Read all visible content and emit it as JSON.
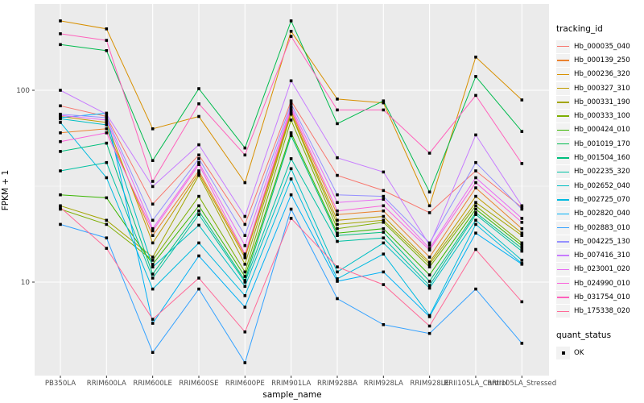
{
  "chart_data": {
    "type": "line",
    "title": "",
    "xlabel": "sample_name",
    "ylabel": "FPKM + 1",
    "y_scale": "log10",
    "ylim": [
      3.2,
      290
    ],
    "y_major_ticks": [
      10,
      100
    ],
    "y_minor_ticks": [
      31.62
    ],
    "grid": "major-and-minor-white-on-gray",
    "legend_position": "right",
    "point_marker": "small-black-square",
    "categories": [
      "PB350LA",
      "RRIM600LA",
      "RRIM600LE",
      "RRIM600SE",
      "RRIM600PE",
      "RRIM901LA",
      "RRIM928BA",
      "RRIM928LA",
      "RRIM928LE",
      "RRII105LA_Control",
      "RRII105LA_Stressed"
    ],
    "series": [
      {
        "name": "Hb_000035_040",
        "color": "#F8766D",
        "values": [
          83,
          73,
          25.5,
          46,
          20,
          88,
          36,
          30,
          23,
          38,
          24.5
        ]
      },
      {
        "name": "Hb_000139_250",
        "color": "#EA8331",
        "values": [
          60,
          63,
          17.5,
          38,
          13.8,
          78,
          22.5,
          23.5,
          13.5,
          31,
          19
        ]
      },
      {
        "name": "Hb_000236_320",
        "color": "#D89000",
        "values": [
          230,
          209,
          63,
          73,
          33,
          203,
          90,
          86,
          25,
          149,
          89
        ]
      },
      {
        "name": "Hb_000327_310",
        "color": "#C09B00",
        "values": [
          73,
          68,
          16,
          37,
          13.4,
          76,
          21,
          22,
          12.7,
          28,
          18
        ]
      },
      {
        "name": "Hb_000331_190",
        "color": "#A3A500",
        "values": [
          25,
          21,
          13.5,
          36,
          12.4,
          75,
          20,
          21,
          12.4,
          26,
          17.5
        ]
      },
      {
        "name": "Hb_000333_100",
        "color": "#7CAE00",
        "values": [
          24,
          20,
          13,
          28,
          11.3,
          70,
          19,
          20.5,
          12,
          25,
          16
        ]
      },
      {
        "name": "Hb_000424_010",
        "color": "#39B600",
        "values": [
          28.5,
          27.5,
          12.4,
          25,
          10.7,
          60,
          18,
          19,
          10.9,
          24,
          15.5
        ]
      },
      {
        "name": "Hb_001019_170",
        "color": "#00BB4E",
        "values": [
          173,
          161,
          43,
          102,
          50,
          230,
          67,
          88,
          29.5,
          118,
          61
        ]
      },
      {
        "name": "Hb_001504_160",
        "color": "#00BF7D",
        "values": [
          48,
          53,
          11,
          23.5,
          10.2,
          58,
          17.5,
          18.2,
          10.1,
          23,
          15
        ]
      },
      {
        "name": "Hb_002235_320",
        "color": "#00C1A3",
        "values": [
          38,
          42,
          10.5,
          22.5,
          10,
          44,
          16.3,
          17,
          9.6,
          22.5,
          14.5
        ]
      },
      {
        "name": "Hb_002652_040",
        "color": "#00BFC4",
        "values": [
          71,
          66,
          12,
          19.8,
          9.5,
          39,
          11.3,
          16,
          9.3,
          21,
          13
        ]
      },
      {
        "name": "Hb_002725_070",
        "color": "#00BAE0",
        "values": [
          68,
          35,
          9.2,
          16,
          8.5,
          34.5,
          10.4,
          14,
          6.7,
          20,
          12.5
        ]
      },
      {
        "name": "Hb_002820_040",
        "color": "#00B0F6",
        "values": [
          72,
          76,
          6.1,
          13.7,
          7.4,
          28.5,
          10.1,
          11.3,
          6.6,
          18,
          12.4
        ]
      },
      {
        "name": "Hb_002883_010",
        "color": "#35A2FF",
        "values": [
          20,
          17,
          4.3,
          9.2,
          3.8,
          24,
          8.2,
          6,
          5.4,
          9.2,
          4.8
        ]
      },
      {
        "name": "Hb_004225_130",
        "color": "#9590FF",
        "values": [
          75,
          72,
          21,
          44,
          17.5,
          85,
          28.5,
          28,
          16,
          42,
          24
        ]
      },
      {
        "name": "Hb_007416_310",
        "color": "#C77CFF",
        "values": [
          100,
          75,
          31.5,
          52,
          22,
          112,
          44.5,
          37.5,
          15.6,
          58.5,
          25
        ]
      },
      {
        "name": "Hb_023001_020",
        "color": "#E76BF3",
        "values": [
          74,
          70,
          19,
          42,
          15.5,
          82,
          26,
          27,
          15,
          35,
          21.5
        ]
      },
      {
        "name": "Hb_024990_010",
        "color": "#FA62DB",
        "values": [
          54,
          60,
          18.5,
          41,
          14,
          80,
          23.5,
          25,
          14.7,
          33,
          20.5
        ]
      },
      {
        "name": "Hb_031754_010",
        "color": "#FF62BC",
        "values": [
          197,
          182,
          33.5,
          85,
          46,
          191,
          79,
          79,
          47,
          94,
          41.5
        ]
      },
      {
        "name": "Hb_175338_020",
        "color": "#FF6A98",
        "values": [
          24.5,
          15,
          6.4,
          10.5,
          5.5,
          21.5,
          12,
          9.7,
          5.9,
          14.8,
          7.9
        ]
      }
    ]
  },
  "axes": {
    "y_title": "FPKM + 1",
    "x_title": "sample_name",
    "y_tick_labels": [
      "100",
      "10"
    ]
  },
  "legend": {
    "tracking_title": "tracking_id",
    "quant_title": "quant_status",
    "quant_items": [
      {
        "label": "OK"
      }
    ]
  },
  "colors": {
    "panel_bg": "#EBEBEB",
    "grid": "#FFFFFF",
    "tick_text": "#4D4D4D",
    "point": "#000000",
    "legend_key_bg": "#F2F2F2"
  }
}
